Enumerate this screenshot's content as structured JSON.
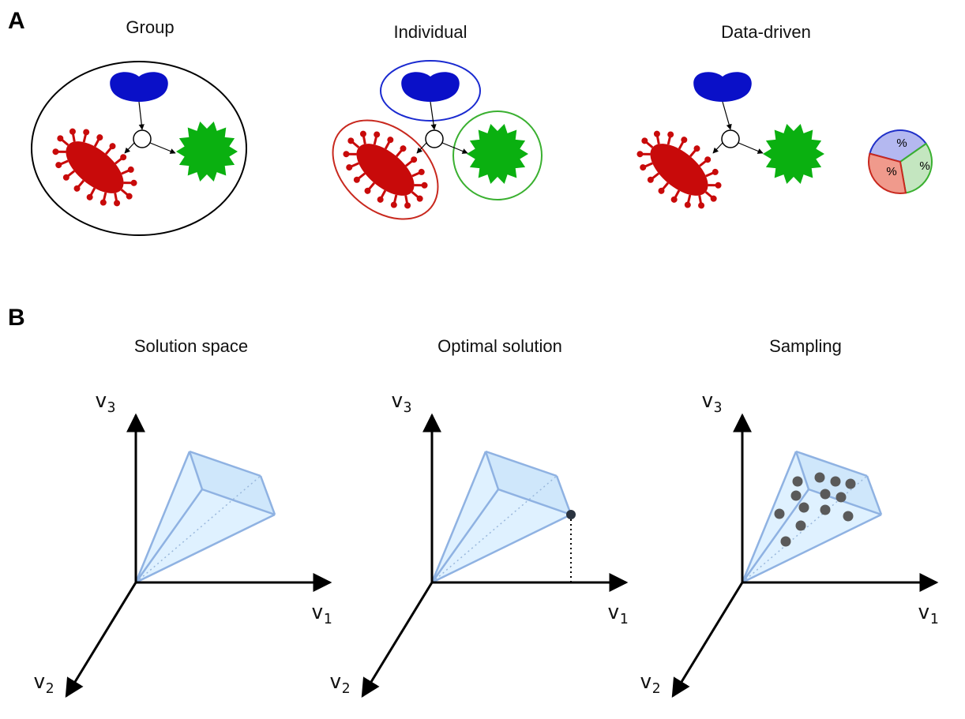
{
  "panels": [
    {
      "label": "A",
      "diagrams": [
        {
          "title": "Group"
        },
        {
          "title": "Individual"
        },
        {
          "title": "Data-driven",
          "pie_labels": [
            "%",
            "%",
            "%"
          ]
        }
      ]
    },
    {
      "label": "B",
      "diagrams": [
        {
          "title": "Solution space",
          "axis_labels": [
            {
              "symbol": "v",
              "index": "3"
            },
            {
              "symbol": "v",
              "index": "1"
            },
            {
              "symbol": "v",
              "index": "2"
            }
          ]
        },
        {
          "title": "Optimal solution",
          "axis_labels": [
            {
              "symbol": "v",
              "index": "3"
            },
            {
              "symbol": "v",
              "index": "1"
            },
            {
              "symbol": "v",
              "index": "2"
            }
          ]
        },
        {
          "title": "Sampling",
          "axis_labels": [
            {
              "symbol": "v",
              "index": "3"
            },
            {
              "symbol": "v",
              "index": "1"
            },
            {
              "symbol": "v",
              "index": "2"
            }
          ]
        }
      ]
    }
  ]
}
